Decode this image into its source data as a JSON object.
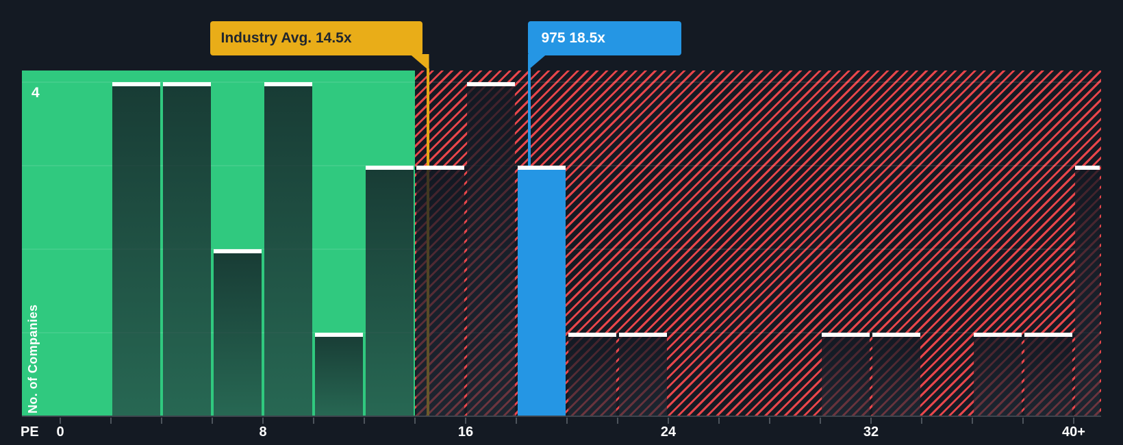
{
  "chart_data": {
    "type": "bar",
    "subtype": "pe-ratio-histogram",
    "x_axis": {
      "axis_label": "PE",
      "tick_labels": [
        {
          "text": "0",
          "pe": 0
        },
        {
          "text": "8",
          "pe": 8
        },
        {
          "text": "16",
          "pe": 16
        },
        {
          "text": "24",
          "pe": 24
        },
        {
          "text": "32",
          "pe": 32
        },
        {
          "text": "40+",
          "pe": 40
        }
      ],
      "minor_tick_every_pe": 2,
      "range_pe": [
        0,
        40
      ]
    },
    "y_axis": {
      "title": "No. of Companies",
      "top_tick_label": "4",
      "max": 4,
      "gridlines_at": [
        1,
        2,
        3,
        4
      ]
    },
    "bins": [
      {
        "pe_from": 0,
        "pe_to": 2,
        "count": 0
      },
      {
        "pe_from": 2,
        "pe_to": 4,
        "count": 4
      },
      {
        "pe_from": 4,
        "pe_to": 6,
        "count": 4
      },
      {
        "pe_from": 6,
        "pe_to": 8,
        "count": 2
      },
      {
        "pe_from": 8,
        "pe_to": 10,
        "count": 4
      },
      {
        "pe_from": 10,
        "pe_to": 12,
        "count": 1
      },
      {
        "pe_from": 12,
        "pe_to": 14,
        "count": 3
      },
      {
        "pe_from": 14,
        "pe_to": 16,
        "count": 3
      },
      {
        "pe_from": 16,
        "pe_to": 18,
        "count": 4
      },
      {
        "pe_from": 18,
        "pe_to": 20,
        "count": 3,
        "highlight": true
      },
      {
        "pe_from": 20,
        "pe_to": 22,
        "count": 1
      },
      {
        "pe_from": 22,
        "pe_to": 24,
        "count": 1
      },
      {
        "pe_from": 24,
        "pe_to": 26,
        "count": 0
      },
      {
        "pe_from": 26,
        "pe_to": 28,
        "count": 0
      },
      {
        "pe_from": 28,
        "pe_to": 30,
        "count": 0
      },
      {
        "pe_from": 30,
        "pe_to": 32,
        "count": 1
      },
      {
        "pe_from": 32,
        "pe_to": 34,
        "count": 1
      },
      {
        "pe_from": 34,
        "pe_to": 36,
        "count": 0
      },
      {
        "pe_from": 36,
        "pe_to": 38,
        "count": 1
      },
      {
        "pe_from": 38,
        "pe_to": 40,
        "count": 1
      },
      {
        "pe_from": 40,
        "pe_to": null,
        "count": 3,
        "open_ended": true
      }
    ],
    "markers": {
      "industry_average": {
        "label": "Industry Avg. 14.5x",
        "pe": 14.5
      },
      "company": {
        "label": "975 18.5x",
        "pe": 18.5
      }
    },
    "zones": {
      "below_average_end_pe": 14
    },
    "colors": {
      "background": "#141a23",
      "below_average_zone": "#30c97f",
      "above_average_hatch_stripe": "#e8464b",
      "highlight_bar": "#2596e4",
      "industry_marker": "#e9ad18",
      "bar_cap": "#ffffff"
    }
  }
}
